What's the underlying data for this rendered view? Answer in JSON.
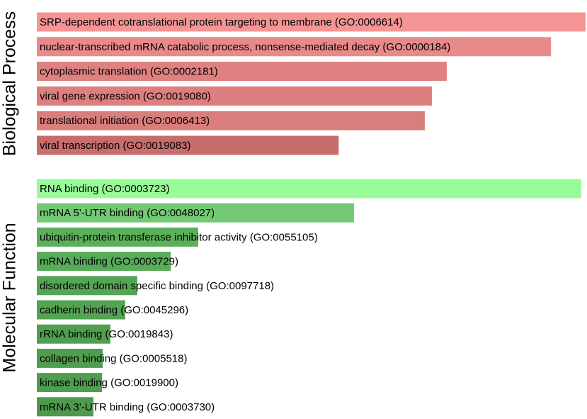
{
  "chart_data": [
    {
      "type": "bar",
      "ylabel": "Biological Process",
      "categories": [
        "SRP-dependent cotranslational protein targeting to membrane (GO:0006614)",
        "nuclear-transcribed mRNA catabolic process, nonsense-mediated decay (GO:0000184)",
        "cytoplasmic translation (GO:0002181)",
        "viral gene expression (GO:0019080)",
        "translational initiation (GO:0006413)",
        "viral transcription (GO:0019083)"
      ],
      "values": [
        100,
        93.7,
        74.7,
        72.0,
        70.7,
        55.0
      ],
      "colors": [
        "#f49595",
        "#e88a8a",
        "#df8181",
        "#dd7f7f",
        "#da7d7d",
        "#c86c6c"
      ],
      "xlim": [
        0,
        100
      ]
    },
    {
      "type": "bar",
      "ylabel": "Molecular Function",
      "categories": [
        "RNA binding (GO:0003723)",
        "mRNA 5'-UTR binding (GO:0048027)",
        "ubiquitin-protein transferase inhibitor activity (GO:0055105)",
        "mRNA binding (GO:0003729)",
        "disordered domain specific binding (GO:0097718)",
        "cadherin binding (GO:0045296)",
        "rRNA binding (GO:0019843)",
        "collagen binding (GO:0005518)",
        "kinase binding (GO:0019900)",
        "mRNA 3'-UTR binding (GO:0003730)"
      ],
      "values": [
        99.2,
        57.8,
        29.4,
        24.4,
        18.3,
        16.1,
        13.4,
        12.0,
        11.9,
        10.3
      ],
      "colors": [
        "#98fb98",
        "#74c974",
        "#5cb05c",
        "#58ab58",
        "#54a554",
        "#52a352",
        "#509f50",
        "#4f9e4f",
        "#4f9e4f",
        "#4d9a4d"
      ],
      "xlim": [
        0,
        100
      ]
    }
  ]
}
